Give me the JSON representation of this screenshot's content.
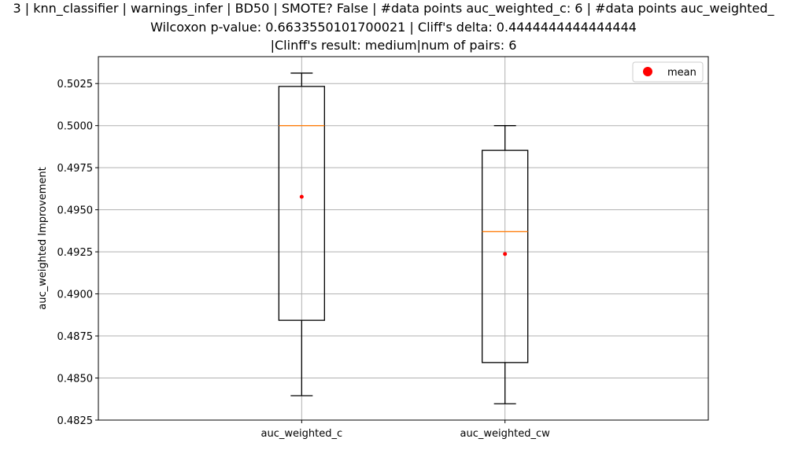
{
  "chart_data": {
    "type": "box",
    "title_lines": [
      "3 | knn_classifier | warnings_infer | BD50 | SMOTE? False | #data points auc_weighted_c: 6 | #data points auc_weighted_",
      "Wilcoxon p-value: 0.6633550101700021 | Cliff's delta: 0.4444444444444444",
      "|Clinff's result: medium|num of pairs: 6"
    ],
    "ylabel": "auc_weighted Improvement",
    "xlabel": "",
    "ylim": [
      0.4825,
      0.5041
    ],
    "yticks": [
      0.4825,
      0.485,
      0.4875,
      0.49,
      0.4925,
      0.495,
      0.4975,
      0.5,
      0.5025
    ],
    "ytick_labels": [
      "0.4825",
      "0.4850",
      "0.4875",
      "0.4900",
      "0.4925",
      "0.4950",
      "0.4975",
      "0.5000",
      "0.5025"
    ],
    "grid": true,
    "legend": {
      "position": "top-right",
      "label": "mean",
      "marker_color": "#ff0000"
    },
    "categories": [
      "auc_weighted_c",
      "auc_weighted_cw"
    ],
    "boxes": [
      {
        "name": "auc_weighted_c",
        "whisker_low": 0.48395,
        "q1": 0.48843,
        "median": 0.5,
        "q3": 0.50233,
        "whisker_high": 0.50312,
        "mean": 0.49577
      },
      {
        "name": "auc_weighted_cw",
        "whisker_low": 0.48347,
        "q1": 0.48592,
        "median": 0.4937,
        "q3": 0.49853,
        "whisker_high": 0.5,
        "mean": 0.49237
      }
    ],
    "colors": {
      "box": "#000000",
      "median": "#ff7f0e",
      "mean": "#ff0000",
      "grid": "#b0b0b0"
    }
  }
}
